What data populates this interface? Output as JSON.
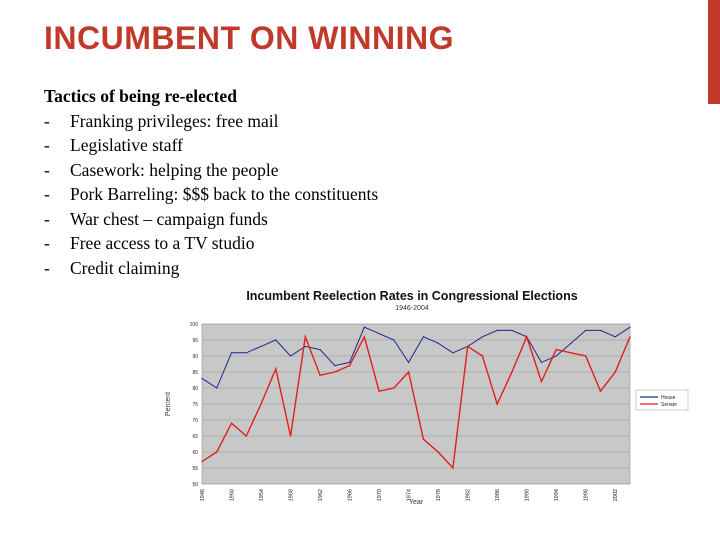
{
  "slide": {
    "title": "INCUMBENT ON WINNING",
    "heading": "Tactics of being re-elected",
    "bullets": [
      {
        "marker": "-",
        "text": "Franking privileges: free mail"
      },
      {
        "marker": "-",
        "text": "Legislative staff"
      },
      {
        "marker": "-",
        "text": "Casework: helping the people"
      },
      {
        "marker": "-",
        "text": "Pork Barreling: $$$ back to the constituents"
      },
      {
        "marker": "-",
        "text": "War chest – campaign funds"
      },
      {
        "marker": "-",
        "text": "Free access to a TV studio"
      },
      {
        "marker": "-",
        "text": "Credit claiming"
      }
    ],
    "accent_color": "#c0392b"
  },
  "chart_data": {
    "type": "line",
    "title": "Incumbent Reelection Rates in Congressional Elections",
    "subtitle": "1946-2004",
    "xlabel": "Year",
    "ylabel": "Percent",
    "ylim": [
      50,
      100
    ],
    "yticks": [
      "100",
      "95",
      "90",
      "85",
      "80",
      "75",
      "70",
      "65",
      "60",
      "55",
      "50"
    ],
    "xticks": [
      "1946",
      "1950",
      "1954",
      "1958",
      "1962",
      "1966",
      "1970",
      "1974",
      "1978",
      "1982",
      "1986",
      "1990",
      "1994",
      "1998",
      "2002"
    ],
    "x": [
      1946,
      1948,
      1950,
      1952,
      1954,
      1956,
      1958,
      1960,
      1962,
      1964,
      1966,
      1968,
      1970,
      1972,
      1974,
      1976,
      1978,
      1980,
      1982,
      1984,
      1986,
      1988,
      1990,
      1992,
      1994,
      1996,
      1998,
      2000,
      2002,
      2004
    ],
    "series": [
      {
        "name": "House",
        "color": "#1a2a8c",
        "values": [
          83,
          80,
          91,
          91,
          93,
          95,
          90,
          93,
          92,
          87,
          88,
          99,
          97,
          95,
          88,
          96,
          94,
          91,
          93,
          96,
          98,
          98,
          96,
          88,
          90,
          94,
          98,
          98,
          96,
          99
        ]
      },
      {
        "name": "Senate",
        "color": "#e0201c",
        "values": [
          57,
          60,
          69,
          65,
          75,
          86,
          65,
          96,
          84,
          85,
          87,
          96,
          79,
          80,
          85,
          64,
          60,
          55,
          93,
          90,
          75,
          85,
          96,
          82,
          92,
          91,
          90,
          79,
          85,
          96
        ]
      }
    ],
    "legend": "right",
    "grid": true
  }
}
